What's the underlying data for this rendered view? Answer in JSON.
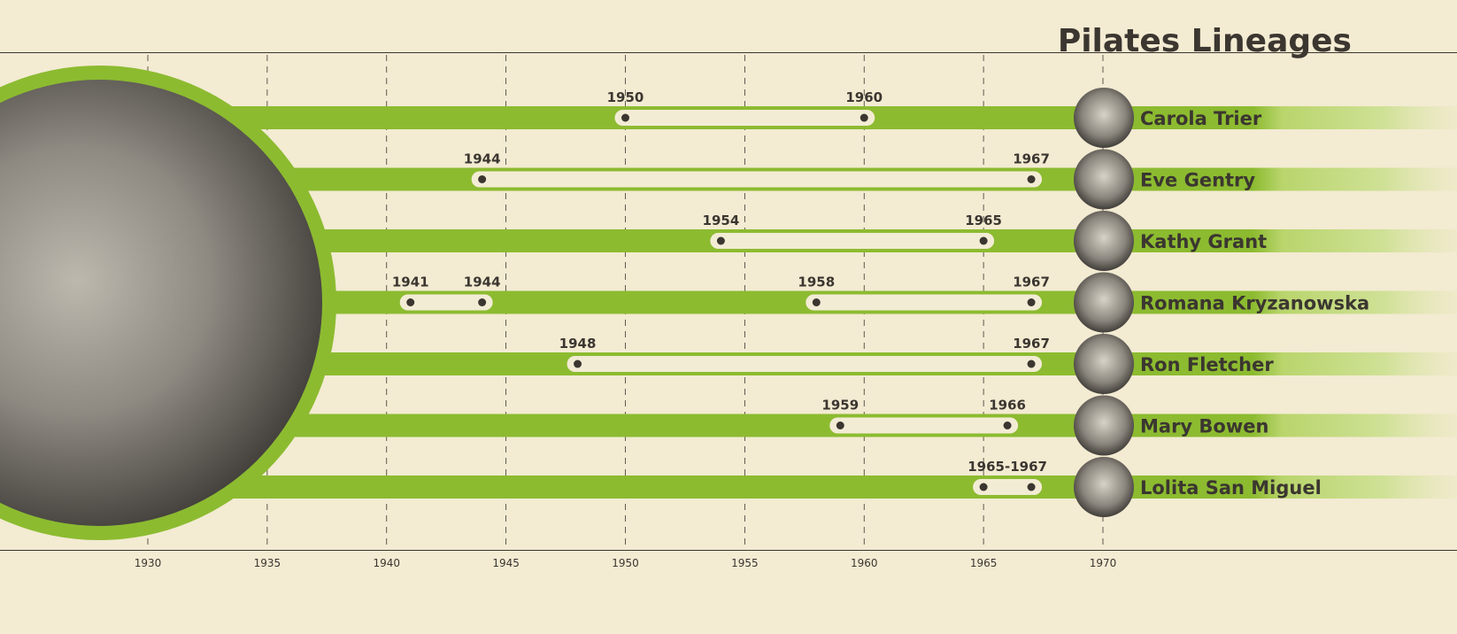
{
  "chart_data": {
    "type": "timeline",
    "title": "Pilates Lineages",
    "xlim": [
      1930,
      1970
    ],
    "ticks": [
      1930,
      1935,
      1940,
      1945,
      1950,
      1955,
      1960,
      1965,
      1970
    ],
    "grid": true,
    "colors": {
      "bar": "#8cbb30",
      "bar_light": "#c9de8c",
      "pill": "#f3ecd5",
      "dot": "#3b3630",
      "text": "#3b3630",
      "background": "#f3ebd2"
    },
    "rows": [
      {
        "name": "Carola Trier",
        "periods": [
          {
            "start": 1950,
            "end": 1960,
            "labels": [
              "1950",
              "1960"
            ]
          }
        ]
      },
      {
        "name": "Eve Gentry",
        "periods": [
          {
            "start": 1944,
            "end": 1967,
            "labels": [
              "1944",
              "1967"
            ]
          }
        ]
      },
      {
        "name": "Kathy Grant",
        "periods": [
          {
            "start": 1954,
            "end": 1965,
            "labels": [
              "1954",
              "1965"
            ]
          }
        ]
      },
      {
        "name": "Romana Kryzanowska",
        "periods": [
          {
            "start": 1941,
            "end": 1944,
            "labels": [
              "1941",
              "1944"
            ]
          },
          {
            "start": 1958,
            "end": 1967,
            "labels": [
              "1958",
              "1967"
            ]
          }
        ]
      },
      {
        "name": "Ron Fletcher",
        "periods": [
          {
            "start": 1948,
            "end": 1967,
            "labels": [
              "1948",
              "1967"
            ]
          }
        ]
      },
      {
        "name": "Mary Bowen",
        "periods": [
          {
            "start": 1959,
            "end": 1966,
            "labels": [
              "1959",
              "1966"
            ]
          }
        ]
      },
      {
        "name": "Lolita San Miguel",
        "periods": [
          {
            "start": 1965,
            "end": 1967,
            "labels": [
              "1965-1967"
            ]
          }
        ]
      }
    ]
  }
}
